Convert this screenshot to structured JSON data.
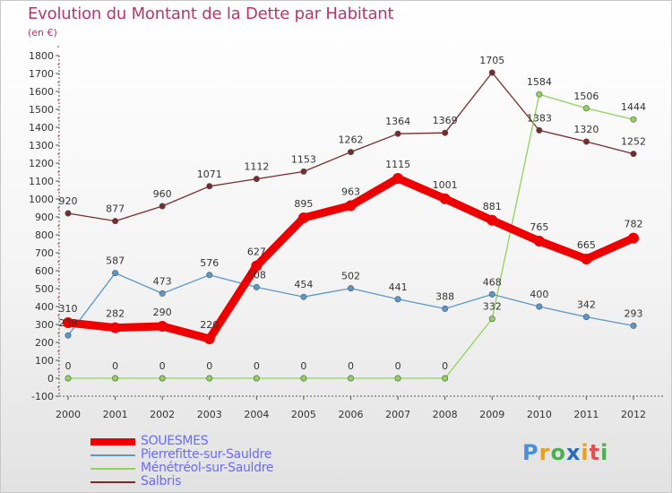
{
  "title": "Evolution du Montant de la Dette par Habitant",
  "unit_label": "(en €)",
  "logo": {
    "text": "Proxiti",
    "letters": [
      {
        "ch": "P",
        "color": "#4a90d9"
      },
      {
        "ch": "r",
        "color": "#e8a020"
      },
      {
        "ch": "o",
        "color": "#4caf50"
      },
      {
        "ch": "x",
        "color": "#2a6bbf"
      },
      {
        "ch": "i",
        "color": "#e8a020"
      },
      {
        "ch": "t",
        "color": "#e05050"
      },
      {
        "ch": "i",
        "color": "#4caf50"
      }
    ]
  },
  "chart_data": {
    "type": "line",
    "x": [
      "2000",
      "2001",
      "2002",
      "2003",
      "2004",
      "2005",
      "2006",
      "2007",
      "2008",
      "2009",
      "2010",
      "2011",
      "2012"
    ],
    "ylim": [
      -100,
      1800
    ],
    "yticks": [
      -100,
      0,
      100,
      200,
      300,
      400,
      500,
      600,
      700,
      800,
      900,
      1000,
      1100,
      1200,
      1300,
      1400,
      1500,
      1600,
      1700,
      1800
    ],
    "grid": false,
    "legend_position": "bottom-left",
    "series": [
      {
        "name": "Salbris",
        "color": "#7a2a2a",
        "values": [
          920,
          877,
          960,
          1071,
          1112,
          1153,
          1262,
          1364,
          1369,
          1705,
          1383,
          1320,
          1252
        ],
        "labels": [
          "920",
          "877",
          "960",
          "1071",
          "1112",
          "1153",
          "1262",
          "1364",
          "1369",
          "1705",
          "1383",
          "1320",
          "1252"
        ]
      },
      {
        "name": "Ménétréol-sur-Sauldre",
        "color": "#8fd35a",
        "values": [
          0,
          0,
          0,
          0,
          0,
          0,
          0,
          0,
          0,
          332,
          1584,
          1506,
          1444
        ],
        "labels": [
          "0",
          "0",
          "0",
          "0",
          "0",
          "0",
          "0",
          "0",
          "0",
          "332",
          "1584",
          "1506",
          "1444"
        ]
      },
      {
        "name": "Pierrefitte-sur-Sauldre",
        "color": "#5a98cc",
        "values": [
          239,
          587,
          473,
          576,
          508,
          454,
          502,
          441,
          388,
          468,
          400,
          342,
          293
        ],
        "labels": [
          "239",
          "587",
          "473",
          "576",
          "508",
          "454",
          "502",
          "441",
          "388",
          "468",
          "400",
          "342",
          "293"
        ]
      },
      {
        "name": "SOUESMES",
        "color": "#ee0000",
        "values": [
          310,
          282,
          290,
          220,
          627,
          895,
          963,
          1115,
          1001,
          881,
          765,
          665,
          782
        ],
        "labels": [
          "310",
          "282",
          "290",
          "220",
          "627",
          "895",
          "963",
          "1115",
          "1001",
          "881",
          "765",
          "665",
          "782"
        ]
      }
    ],
    "legend_order": [
      "SOUESMES",
      "Pierrefitte-sur-Sauldre",
      "Ménétréol-sur-Sauldre",
      "Salbris"
    ]
  }
}
